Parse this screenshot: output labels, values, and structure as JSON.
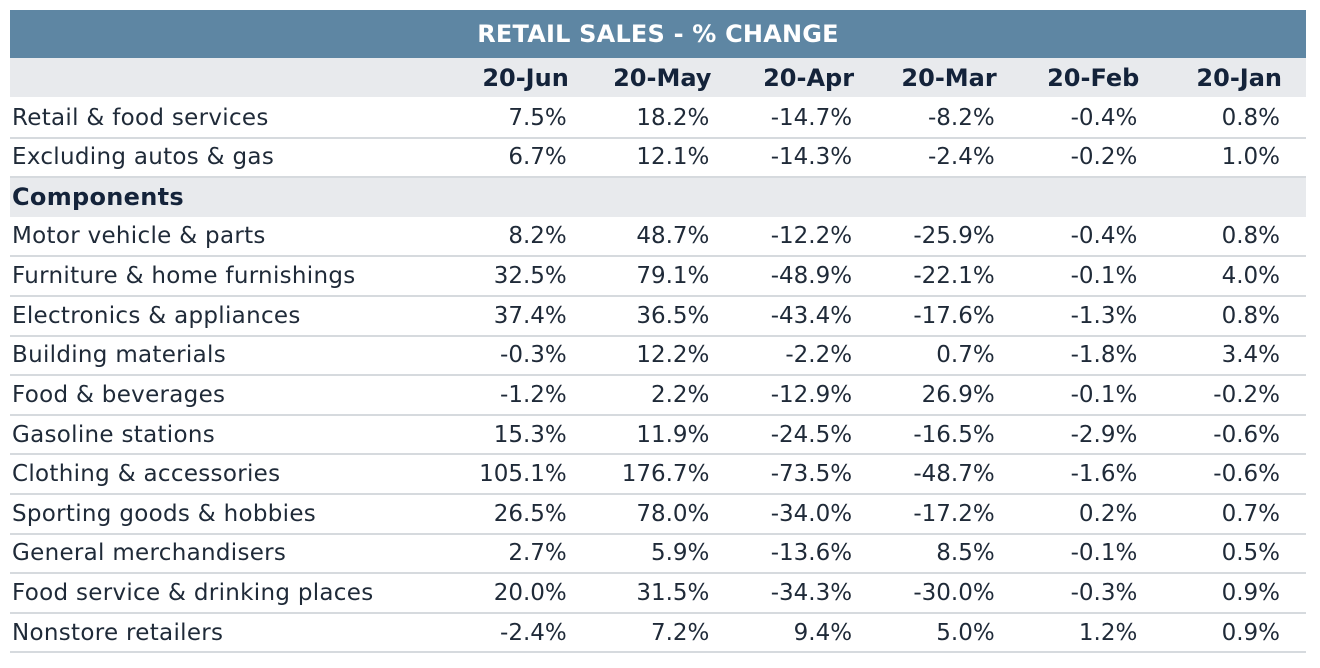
{
  "chart_data": {
    "type": "table",
    "title": "RETAIL SALES - % CHANGE",
    "columns": [
      "20-Jun",
      "20-May",
      "20-Apr",
      "20-Mar",
      "20-Feb",
      "20-Jan"
    ],
    "rows": [
      {
        "label": "Retail & food services",
        "values": [
          "7.5%",
          "18.2%",
          "-14.7%",
          "-8.2%",
          "-0.4%",
          "0.8%"
        ]
      },
      {
        "label": "Excluding autos & gas",
        "values": [
          "6.7%",
          "12.1%",
          "-14.3%",
          "-2.4%",
          "-0.2%",
          "1.0%"
        ]
      },
      {
        "label": "Components",
        "section": true,
        "values": []
      },
      {
        "label": "Motor vehicle & parts",
        "values": [
          "8.2%",
          "48.7%",
          "-12.2%",
          "-25.9%",
          "-0.4%",
          "0.8%"
        ]
      },
      {
        "label": "Furniture & home furnishings",
        "values": [
          "32.5%",
          "79.1%",
          "-48.9%",
          "-22.1%",
          "-0.1%",
          "4.0%"
        ]
      },
      {
        "label": "Electronics & appliances",
        "values": [
          "37.4%",
          "36.5%",
          "-43.4%",
          "-17.6%",
          "-1.3%",
          "0.8%"
        ]
      },
      {
        "label": "Building materials",
        "values": [
          "-0.3%",
          "12.2%",
          "-2.2%",
          "0.7%",
          "-1.8%",
          "3.4%"
        ]
      },
      {
        "label": "Food & beverages",
        "values": [
          "-1.2%",
          "2.2%",
          "-12.9%",
          "26.9%",
          "-0.1%",
          "-0.2%"
        ]
      },
      {
        "label": "Gasoline stations",
        "values": [
          "15.3%",
          "11.9%",
          "-24.5%",
          "-16.5%",
          "-2.9%",
          "-0.6%"
        ]
      },
      {
        "label": "Clothing & accessories",
        "values": [
          "105.1%",
          "176.7%",
          "-73.5%",
          "-48.7%",
          "-1.6%",
          "-0.6%"
        ]
      },
      {
        "label": "Sporting goods & hobbies",
        "values": [
          "26.5%",
          "78.0%",
          "-34.0%",
          "-17.2%",
          "0.2%",
          "0.7%"
        ]
      },
      {
        "label": "General merchandisers",
        "values": [
          "2.7%",
          "5.9%",
          "-13.6%",
          "8.5%",
          "-0.1%",
          "0.5%"
        ]
      },
      {
        "label": "Food service & drinking places",
        "values": [
          "20.0%",
          "31.5%",
          "-34.3%",
          "-30.0%",
          "-0.3%",
          "0.9%"
        ]
      },
      {
        "label": "Nonstore retailers",
        "values": [
          "-2.4%",
          "7.2%",
          "9.4%",
          "5.0%",
          "1.2%",
          "0.9%"
        ]
      }
    ]
  },
  "colors": {
    "title_bar": "#5e86a3",
    "header_row": "#e8eaed",
    "row_divider": "#d6dade"
  }
}
